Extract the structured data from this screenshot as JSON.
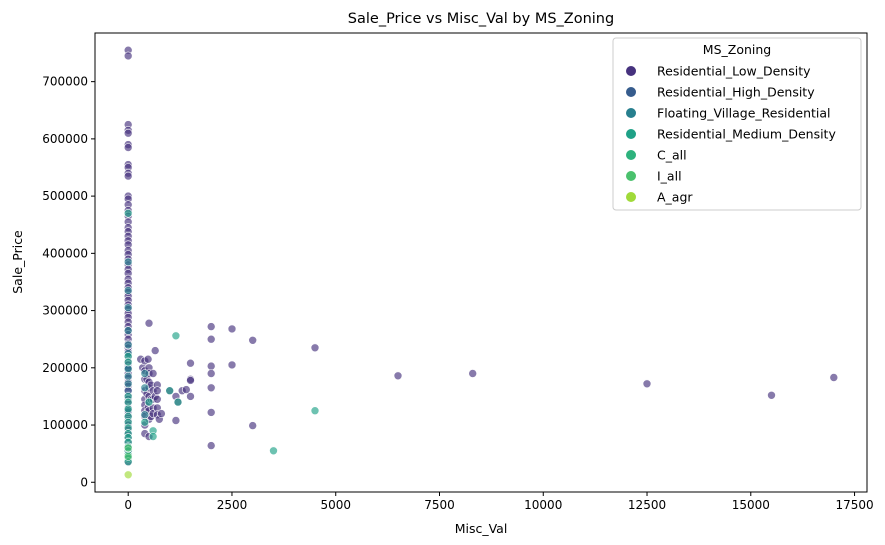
{
  "chart_data": {
    "type": "scatter",
    "title": "Sale_Price vs Misc_Val by MS_Zoning",
    "xlabel": "Misc_Val",
    "ylabel": "Sale_Price",
    "xlim": [
      -800,
      17800
    ],
    "ylim": [
      -17000,
      785000
    ],
    "xticks": [
      0,
      2500,
      5000,
      7500,
      10000,
      12500,
      15000,
      17500
    ],
    "xtick_labels": [
      "0",
      "2500",
      "5000",
      "7500",
      "10000",
      "12500",
      "15000",
      "17500"
    ],
    "yticks": [
      0,
      100000,
      200000,
      300000,
      400000,
      500000,
      600000,
      700000
    ],
    "ytick_labels": [
      "0",
      "100000",
      "200000",
      "300000",
      "400000",
      "500000",
      "600000",
      "700000"
    ],
    "grid": false,
    "legend": {
      "title": "MS_Zoning",
      "placement": "top-right"
    },
    "series": [
      {
        "name": "Residential_Low_Density",
        "color": "#46327e",
        "points": [
          [
            0,
            755000
          ],
          [
            0,
            745000
          ],
          [
            0,
            625000
          ],
          [
            0,
            615000
          ],
          [
            0,
            610000
          ],
          [
            0,
            590000
          ],
          [
            0,
            585000
          ],
          [
            0,
            555000
          ],
          [
            0,
            550000
          ],
          [
            0,
            540000
          ],
          [
            0,
            535000
          ],
          [
            0,
            500000
          ],
          [
            0,
            495000
          ],
          [
            0,
            485000
          ],
          [
            0,
            475000
          ],
          [
            0,
            465000
          ],
          [
            0,
            455000
          ],
          [
            0,
            445000
          ],
          [
            0,
            438000
          ],
          [
            0,
            430000
          ],
          [
            0,
            422000
          ],
          [
            0,
            415000
          ],
          [
            0,
            405000
          ],
          [
            0,
            398000
          ],
          [
            0,
            390000
          ],
          [
            0,
            380000
          ],
          [
            0,
            372000
          ],
          [
            0,
            365000
          ],
          [
            0,
            355000
          ],
          [
            0,
            348000
          ],
          [
            0,
            340000
          ],
          [
            0,
            332000
          ],
          [
            0,
            325000
          ],
          [
            0,
            318000
          ],
          [
            0,
            310000
          ],
          [
            0,
            302000
          ],
          [
            0,
            295000
          ],
          [
            0,
            288000
          ],
          [
            0,
            280000
          ],
          [
            0,
            272000
          ],
          [
            0,
            265000
          ],
          [
            0,
            258000
          ],
          [
            0,
            250000
          ],
          [
            0,
            242000
          ],
          [
            0,
            235000
          ],
          [
            0,
            228000
          ],
          [
            0,
            220000
          ],
          [
            0,
            212000
          ],
          [
            0,
            205000
          ],
          [
            0,
            198000
          ],
          [
            0,
            190000
          ],
          [
            0,
            182000
          ],
          [
            0,
            175000
          ],
          [
            0,
            168000
          ],
          [
            0,
            160000
          ],
          [
            0,
            152000
          ],
          [
            0,
            145000
          ],
          [
            0,
            138000
          ],
          [
            0,
            130000
          ],
          [
            0,
            122000
          ],
          [
            0,
            115000
          ],
          [
            0,
            108000
          ],
          [
            0,
            100000
          ],
          [
            0,
            92000
          ],
          [
            0,
            85000
          ],
          [
            0,
            78000
          ],
          [
            0,
            70000
          ],
          [
            0,
            62000
          ],
          [
            0,
            55000
          ],
          [
            0,
            48000
          ],
          [
            0,
            40000
          ],
          [
            0,
            35000
          ],
          [
            500,
            278000
          ],
          [
            650,
            230000
          ],
          [
            1500,
            208000
          ],
          [
            2000,
            272000
          ],
          [
            2000,
            250000
          ],
          [
            2000,
            203000
          ],
          [
            2000,
            190000
          ],
          [
            2000,
            165000
          ],
          [
            2000,
            122000
          ],
          [
            2000,
            64000
          ],
          [
            2500,
            268000
          ],
          [
            2500,
            205000
          ],
          [
            3000,
            248000
          ],
          [
            3000,
            99000
          ],
          [
            4500,
            235000
          ],
          [
            6500,
            186000
          ],
          [
            8300,
            190000
          ],
          [
            12500,
            172000
          ],
          [
            15500,
            152000
          ],
          [
            17000,
            183000
          ],
          [
            300,
            215000
          ],
          [
            350,
            200000
          ],
          [
            400,
            212000
          ],
          [
            400,
            195000
          ],
          [
            400,
            180000
          ],
          [
            400,
            160000
          ],
          [
            400,
            145000
          ],
          [
            400,
            135000
          ],
          [
            400,
            125000
          ],
          [
            400,
            115000
          ],
          [
            400,
            100000
          ],
          [
            400,
            85000
          ],
          [
            450,
            180000
          ],
          [
            450,
            155000
          ],
          [
            480,
            215000
          ],
          [
            480,
            130000
          ],
          [
            500,
            200000
          ],
          [
            500,
            190000
          ],
          [
            500,
            175000
          ],
          [
            500,
            165000
          ],
          [
            500,
            150000
          ],
          [
            500,
            140000
          ],
          [
            500,
            125000
          ],
          [
            500,
            110000
          ],
          [
            500,
            80000
          ],
          [
            550,
            170000
          ],
          [
            550,
            145000
          ],
          [
            550,
            115000
          ],
          [
            600,
            190000
          ],
          [
            600,
            160000
          ],
          [
            600,
            145000
          ],
          [
            600,
            130000
          ],
          [
            600,
            120000
          ],
          [
            650,
            150000
          ],
          [
            700,
            170000
          ],
          [
            700,
            160000
          ],
          [
            700,
            145000
          ],
          [
            700,
            130000
          ],
          [
            700,
            118000
          ],
          [
            750,
            110000
          ],
          [
            800,
            120000
          ],
          [
            1150,
            150000
          ],
          [
            1150,
            108000
          ],
          [
            1200,
            140000
          ],
          [
            1300,
            160000
          ],
          [
            1400,
            162000
          ],
          [
            1500,
            180000
          ],
          [
            1500,
            178000
          ],
          [
            1500,
            150000
          ],
          [
            1000,
            160000
          ]
        ]
      },
      {
        "name": "Residential_High_Density",
        "color": "#365c8d",
        "points": [
          [
            0,
            200000
          ],
          [
            0,
            160000
          ],
          [
            0,
            125000
          ]
        ]
      },
      {
        "name": "Floating_Village_Residential",
        "color": "#277f8e",
        "points": [
          [
            0,
            385000
          ],
          [
            0,
            335000
          ],
          [
            0,
            305000
          ],
          [
            0,
            265000
          ],
          [
            0,
            240000
          ],
          [
            0,
            225000
          ],
          [
            0,
            198000
          ],
          [
            0,
            185000
          ],
          [
            0,
            172000
          ],
          [
            400,
            190000
          ],
          [
            400,
            165000
          ],
          [
            400,
            118000
          ]
        ]
      },
      {
        "name": "Residential_Medium_Density",
        "color": "#1fa187",
        "points": [
          [
            0,
            470000
          ],
          [
            0,
            220000
          ],
          [
            0,
            210000
          ],
          [
            0,
            150000
          ],
          [
            0,
            140000
          ],
          [
            0,
            128000
          ],
          [
            0,
            115000
          ],
          [
            0,
            105000
          ],
          [
            0,
            95000
          ],
          [
            0,
            85000
          ],
          [
            0,
            78000
          ],
          [
            0,
            70000
          ],
          [
            0,
            62000
          ],
          [
            0,
            55000
          ],
          [
            0,
            48000
          ],
          [
            0,
            42000
          ],
          [
            0,
            36000
          ],
          [
            1150,
            256000
          ],
          [
            1200,
            140000
          ],
          [
            1000,
            160000
          ],
          [
            4500,
            125000
          ],
          [
            3500,
            55000
          ],
          [
            400,
            105000
          ],
          [
            500,
            140000
          ],
          [
            600,
            90000
          ],
          [
            600,
            80000
          ]
        ]
      },
      {
        "name": "C_all",
        "color": "#4ac16d",
        "points": [
          [
            0,
            60000
          ],
          [
            0,
            45000
          ]
        ]
      },
      {
        "name": "I_all",
        "color": "#a0da39",
        "points": []
      },
      {
        "name": "A_agr",
        "color": "#a0da39",
        "points": [
          [
            0,
            13000
          ]
        ]
      }
    ],
    "legend_colors": [
      "#46327e",
      "#365c8d",
      "#277f8e",
      "#1fa187",
      "#2db27d",
      "#4ac16d",
      "#a0da39"
    ]
  }
}
